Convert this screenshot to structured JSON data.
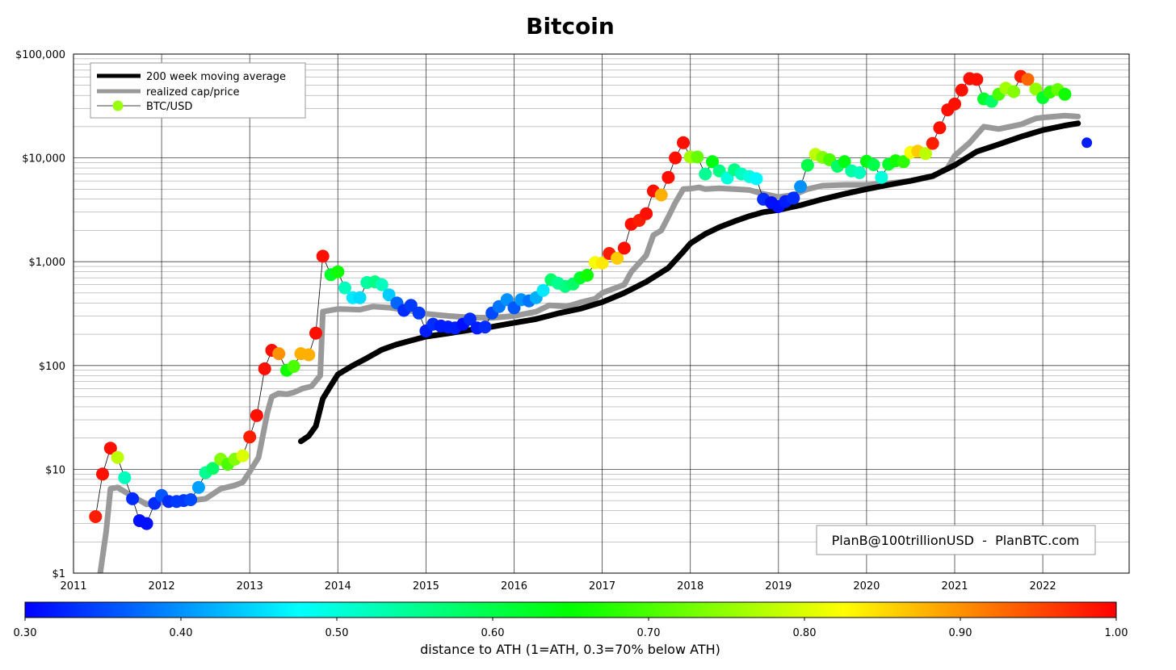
{
  "chart_data": {
    "type": "scatter",
    "title": "Bitcoin",
    "yscale": "log",
    "ylim": [
      1,
      100000
    ],
    "xlim": [
      2011.0,
      2022.98
    ],
    "grid": true,
    "y_ticks": [
      {
        "value": 1,
        "label": "$1"
      },
      {
        "value": 10,
        "label": "$10"
      },
      {
        "value": 100,
        "label": "$100"
      },
      {
        "value": 1000,
        "label": "$1,000"
      },
      {
        "value": 10000,
        "label": "$10,000"
      },
      {
        "value": 100000,
        "label": "$100,000"
      }
    ],
    "x_ticks": [
      {
        "value": 2011,
        "label": "2011"
      },
      {
        "value": 2012,
        "label": "2012"
      },
      {
        "value": 2013,
        "label": "2013"
      },
      {
        "value": 2014,
        "label": "2014"
      },
      {
        "value": 2015,
        "label": "2015"
      },
      {
        "value": 2016,
        "label": "2016"
      },
      {
        "value": 2017,
        "label": "2017"
      },
      {
        "value": 2018,
        "label": "2018"
      },
      {
        "value": 2019,
        "label": "2019"
      },
      {
        "value": 2020,
        "label": "2020"
      },
      {
        "value": 2021,
        "label": "2021"
      },
      {
        "value": 2022,
        "label": "2022"
      }
    ],
    "legend_position": "top-left",
    "legend": [
      {
        "name": "200 week moving average",
        "style": "thick-line",
        "color": "#000000"
      },
      {
        "name": "realized cap/price",
        "style": "thick-line",
        "color": "#999999"
      },
      {
        "name": "BTC/USD",
        "style": "marker",
        "color": "#99ff11"
      }
    ],
    "credit": "PlanB@100trillionUSD  -  PlanBTC.com",
    "colorbar": {
      "label": "distance to ATH (1=ATH, 0.3=70% below ATH)",
      "min": 0.3,
      "max": 1.0,
      "ticks": [
        {
          "value": 0.3,
          "label": "0.30"
        },
        {
          "value": 0.4,
          "label": "0.40"
        },
        {
          "value": 0.5,
          "label": "0.50"
        },
        {
          "value": 0.6,
          "label": "0.60"
        },
        {
          "value": 0.7,
          "label": "0.70"
        },
        {
          "value": 0.8,
          "label": "0.80"
        },
        {
          "value": 0.9,
          "label": "0.90"
        },
        {
          "value": 1.0,
          "label": "1.00"
        }
      ],
      "colormap": [
        "#0000ff",
        "#00ffff",
        "#00ff00",
        "#ffff00",
        "#ff0000"
      ]
    },
    "series": [
      {
        "name": "200 week moving average",
        "color": "#000000",
        "points": [
          [
            2013.58,
            18.6
          ],
          [
            2013.67,
            21
          ],
          [
            2013.75,
            26
          ],
          [
            2013.83,
            48
          ],
          [
            2013.92,
            64
          ],
          [
            2014.0,
            82
          ],
          [
            2014.17,
            100
          ],
          [
            2014.33,
            118
          ],
          [
            2014.5,
            142
          ],
          [
            2014.67,
            160
          ],
          [
            2014.83,
            174
          ],
          [
            2015.0,
            190
          ],
          [
            2015.25,
            204
          ],
          [
            2015.5,
            220
          ],
          [
            2015.75,
            236
          ],
          [
            2016.0,
            258
          ],
          [
            2016.25,
            280
          ],
          [
            2016.5,
            318
          ],
          [
            2016.75,
            352
          ],
          [
            2017.0,
            408
          ],
          [
            2017.25,
            500
          ],
          [
            2017.5,
            640
          ],
          [
            2017.75,
            870
          ],
          [
            2017.92,
            1250
          ],
          [
            2018.0,
            1500
          ],
          [
            2018.17,
            1850
          ],
          [
            2018.33,
            2150
          ],
          [
            2018.5,
            2450
          ],
          [
            2018.67,
            2750
          ],
          [
            2018.83,
            3000
          ],
          [
            2019.0,
            3150
          ],
          [
            2019.25,
            3500
          ],
          [
            2019.5,
            4000
          ],
          [
            2019.75,
            4500
          ],
          [
            2020.0,
            5000
          ],
          [
            2020.25,
            5500
          ],
          [
            2020.5,
            6000
          ],
          [
            2020.75,
            6700
          ],
          [
            2021.0,
            8500
          ],
          [
            2021.25,
            11500
          ],
          [
            2021.5,
            13500
          ],
          [
            2021.75,
            16000
          ],
          [
            2022.0,
            18500
          ],
          [
            2022.25,
            20500
          ],
          [
            2022.4,
            21500
          ]
        ]
      },
      {
        "name": "realized cap/price",
        "color": "#999999",
        "points": [
          [
            2011.25,
            0.6
          ],
          [
            2011.3,
            0.95
          ],
          [
            2011.37,
            2.5
          ],
          [
            2011.42,
            6.5
          ],
          [
            2011.5,
            6.7
          ],
          [
            2011.67,
            5.5
          ],
          [
            2011.83,
            4.6
          ],
          [
            2012.0,
            4.8
          ],
          [
            2012.25,
            4.9
          ],
          [
            2012.5,
            5.2
          ],
          [
            2012.67,
            6.5
          ],
          [
            2012.83,
            7.0
          ],
          [
            2012.92,
            7.5
          ],
          [
            2013.0,
            9.5
          ],
          [
            2013.1,
            13
          ],
          [
            2013.2,
            35
          ],
          [
            2013.25,
            50
          ],
          [
            2013.33,
            54
          ],
          [
            2013.42,
            53
          ],
          [
            2013.5,
            55
          ],
          [
            2013.6,
            60
          ],
          [
            2013.7,
            63
          ],
          [
            2013.8,
            80
          ],
          [
            2013.83,
            330
          ],
          [
            2014.0,
            350
          ],
          [
            2014.25,
            345
          ],
          [
            2014.4,
            370
          ],
          [
            2014.6,
            360
          ],
          [
            2014.8,
            340
          ],
          [
            2015.0,
            315
          ],
          [
            2015.25,
            300
          ],
          [
            2015.5,
            290
          ],
          [
            2015.75,
            288
          ],
          [
            2016.0,
            300
          ],
          [
            2016.25,
            330
          ],
          [
            2016.4,
            380
          ],
          [
            2016.6,
            370
          ],
          [
            2016.75,
            405
          ],
          [
            2016.92,
            440
          ],
          [
            2017.0,
            500
          ],
          [
            2017.25,
            600
          ],
          [
            2017.33,
            800
          ],
          [
            2017.5,
            1150
          ],
          [
            2017.58,
            1800
          ],
          [
            2017.67,
            2000
          ],
          [
            2017.75,
            2700
          ],
          [
            2017.83,
            3700
          ],
          [
            2017.92,
            5000
          ],
          [
            2018.0,
            5050
          ],
          [
            2018.1,
            5200
          ],
          [
            2018.17,
            5000
          ],
          [
            2018.33,
            5100
          ],
          [
            2018.5,
            5000
          ],
          [
            2018.67,
            4900
          ],
          [
            2018.83,
            4500
          ],
          [
            2019.0,
            4200
          ],
          [
            2019.17,
            4400
          ],
          [
            2019.33,
            5000
          ],
          [
            2019.5,
            5400
          ],
          [
            2019.75,
            5500
          ],
          [
            2020.0,
            5500
          ],
          [
            2020.25,
            5700
          ],
          [
            2020.5,
            6000
          ],
          [
            2020.75,
            6600
          ],
          [
            2020.92,
            8000
          ],
          [
            2021.0,
            10500
          ],
          [
            2021.17,
            14000
          ],
          [
            2021.33,
            20000
          ],
          [
            2021.5,
            19000
          ],
          [
            2021.75,
            21000
          ],
          [
            2021.92,
            24000
          ],
          [
            2022.0,
            24500
          ],
          [
            2022.25,
            25500
          ],
          [
            2022.4,
            25000
          ]
        ]
      }
    ],
    "btc_usd": [
      [
        2011.25,
        3.5,
        0.98
      ],
      [
        2011.33,
        9,
        0.99
      ],
      [
        2011.42,
        16,
        0.99
      ],
      [
        2011.5,
        13,
        0.78
      ],
      [
        2011.58,
        8.3,
        0.52
      ],
      [
        2011.67,
        5.2,
        0.33
      ],
      [
        2011.75,
        3.2,
        0.31
      ],
      [
        2011.83,
        3.0,
        0.31
      ],
      [
        2011.92,
        4.7,
        0.33
      ],
      [
        2012.0,
        5.6,
        0.36
      ],
      [
        2012.08,
        4.9,
        0.33
      ],
      [
        2012.17,
        4.9,
        0.34
      ],
      [
        2012.25,
        5.0,
        0.34
      ],
      [
        2012.33,
        5.1,
        0.35
      ],
      [
        2012.42,
        6.7,
        0.41
      ],
      [
        2012.5,
        9.3,
        0.55
      ],
      [
        2012.58,
        10.2,
        0.58
      ],
      [
        2012.67,
        12.5,
        0.74
      ],
      [
        2012.75,
        11.2,
        0.7
      ],
      [
        2012.83,
        12.5,
        0.74
      ],
      [
        2012.92,
        13.5,
        0.8
      ],
      [
        2013.0,
        20.5,
        0.98
      ],
      [
        2013.08,
        33,
        0.99
      ],
      [
        2013.17,
        93,
        0.99
      ],
      [
        2013.25,
        140,
        0.99
      ],
      [
        2013.33,
        130,
        0.9
      ],
      [
        2013.42,
        90,
        0.66
      ],
      [
        2013.5,
        98,
        0.7
      ],
      [
        2013.58,
        130,
        0.88
      ],
      [
        2013.67,
        127,
        0.88
      ],
      [
        2013.75,
        205,
        0.99
      ],
      [
        2013.83,
        1130,
        0.99
      ],
      [
        2013.92,
        750,
        0.62
      ],
      [
        2014.0,
        800,
        0.66
      ],
      [
        2014.08,
        560,
        0.52
      ],
      [
        2014.17,
        450,
        0.46
      ],
      [
        2014.25,
        450,
        0.45
      ],
      [
        2014.33,
        630,
        0.54
      ],
      [
        2014.42,
        640,
        0.56
      ],
      [
        2014.5,
        600,
        0.52
      ],
      [
        2014.58,
        480,
        0.44
      ],
      [
        2014.67,
        400,
        0.37
      ],
      [
        2014.75,
        340,
        0.33
      ],
      [
        2014.83,
        380,
        0.34
      ],
      [
        2014.92,
        320,
        0.34
      ],
      [
        2015.0,
        215,
        0.32
      ],
      [
        2015.08,
        250,
        0.33
      ],
      [
        2015.17,
        240,
        0.32
      ],
      [
        2015.25,
        235,
        0.32
      ],
      [
        2015.33,
        230,
        0.32
      ],
      [
        2015.42,
        250,
        0.31
      ],
      [
        2015.5,
        280,
        0.33
      ],
      [
        2015.58,
        230,
        0.32
      ],
      [
        2015.67,
        235,
        0.33
      ],
      [
        2015.75,
        320,
        0.35
      ],
      [
        2015.83,
        370,
        0.38
      ],
      [
        2015.92,
        430,
        0.4
      ],
      [
        2016.0,
        360,
        0.36
      ],
      [
        2016.08,
        430,
        0.4
      ],
      [
        2016.17,
        420,
        0.38
      ],
      [
        2016.25,
        450,
        0.42
      ],
      [
        2016.33,
        530,
        0.46
      ],
      [
        2016.42,
        670,
        0.58
      ],
      [
        2016.5,
        620,
        0.55
      ],
      [
        2016.58,
        580,
        0.56
      ],
      [
        2016.67,
        610,
        0.58
      ],
      [
        2016.75,
        700,
        0.62
      ],
      [
        2016.83,
        740,
        0.66
      ],
      [
        2016.92,
        980,
        0.82
      ],
      [
        2017.0,
        970,
        0.84
      ],
      [
        2017.08,
        1200,
        0.98
      ],
      [
        2017.17,
        1080,
        0.86
      ],
      [
        2017.25,
        1350,
        0.99
      ],
      [
        2017.33,
        2300,
        0.99
      ],
      [
        2017.42,
        2500,
        0.98
      ],
      [
        2017.5,
        2900,
        0.99
      ],
      [
        2017.58,
        4800,
        0.99
      ],
      [
        2017.67,
        4400,
        0.88
      ],
      [
        2017.75,
        6500,
        0.99
      ],
      [
        2017.83,
        10000,
        0.99
      ],
      [
        2017.92,
        14000,
        0.99
      ],
      [
        2018.0,
        10200,
        0.76
      ],
      [
        2018.08,
        10200,
        0.72
      ],
      [
        2018.17,
        7000,
        0.55
      ],
      [
        2018.25,
        9200,
        0.64
      ],
      [
        2018.33,
        7500,
        0.56
      ],
      [
        2018.42,
        6400,
        0.5
      ],
      [
        2018.5,
        7700,
        0.56
      ],
      [
        2018.58,
        7000,
        0.52
      ],
      [
        2018.67,
        6600,
        0.5
      ],
      [
        2018.75,
        6300,
        0.47
      ],
      [
        2018.83,
        4000,
        0.33
      ],
      [
        2018.92,
        3700,
        0.31
      ],
      [
        2019.0,
        3400,
        0.31
      ],
      [
        2019.08,
        3800,
        0.32
      ],
      [
        2019.17,
        4100,
        0.33
      ],
      [
        2019.25,
        5300,
        0.4
      ],
      [
        2019.33,
        8500,
        0.6
      ],
      [
        2019.42,
        10800,
        0.78
      ],
      [
        2019.5,
        10100,
        0.74
      ],
      [
        2019.58,
        9600,
        0.7
      ],
      [
        2019.67,
        8300,
        0.58
      ],
      [
        2019.75,
        9200,
        0.64
      ],
      [
        2019.83,
        7500,
        0.54
      ],
      [
        2019.92,
        7200,
        0.52
      ],
      [
        2020.0,
        9300,
        0.64
      ],
      [
        2020.08,
        8600,
        0.6
      ],
      [
        2020.17,
        6500,
        0.5
      ],
      [
        2020.25,
        8700,
        0.62
      ],
      [
        2020.33,
        9400,
        0.66
      ],
      [
        2020.42,
        9200,
        0.68
      ],
      [
        2020.5,
        11300,
        0.82
      ],
      [
        2020.58,
        11600,
        0.86
      ],
      [
        2020.67,
        11000,
        0.78
      ],
      [
        2020.75,
        13800,
        0.98
      ],
      [
        2020.83,
        19500,
        0.99
      ],
      [
        2020.92,
        29000,
        0.99
      ],
      [
        2021.0,
        33000,
        0.99
      ],
      [
        2021.08,
        45000,
        0.99
      ],
      [
        2021.17,
        58000,
        0.99
      ],
      [
        2021.25,
        57000,
        0.99
      ],
      [
        2021.33,
        37000,
        0.62
      ],
      [
        2021.42,
        35000,
        0.58
      ],
      [
        2021.5,
        41000,
        0.7
      ],
      [
        2021.58,
        47000,
        0.76
      ],
      [
        2021.67,
        43500,
        0.74
      ],
      [
        2021.75,
        61000,
        0.98
      ],
      [
        2021.83,
        57000,
        0.93
      ],
      [
        2021.92,
        46000,
        0.75
      ],
      [
        2022.0,
        38000,
        0.62
      ],
      [
        2022.08,
        43000,
        0.68
      ],
      [
        2022.17,
        45500,
        0.72
      ],
      [
        2022.25,
        41000,
        0.66
      ],
      [
        2022.5,
        14000,
        0.32
      ]
    ]
  }
}
